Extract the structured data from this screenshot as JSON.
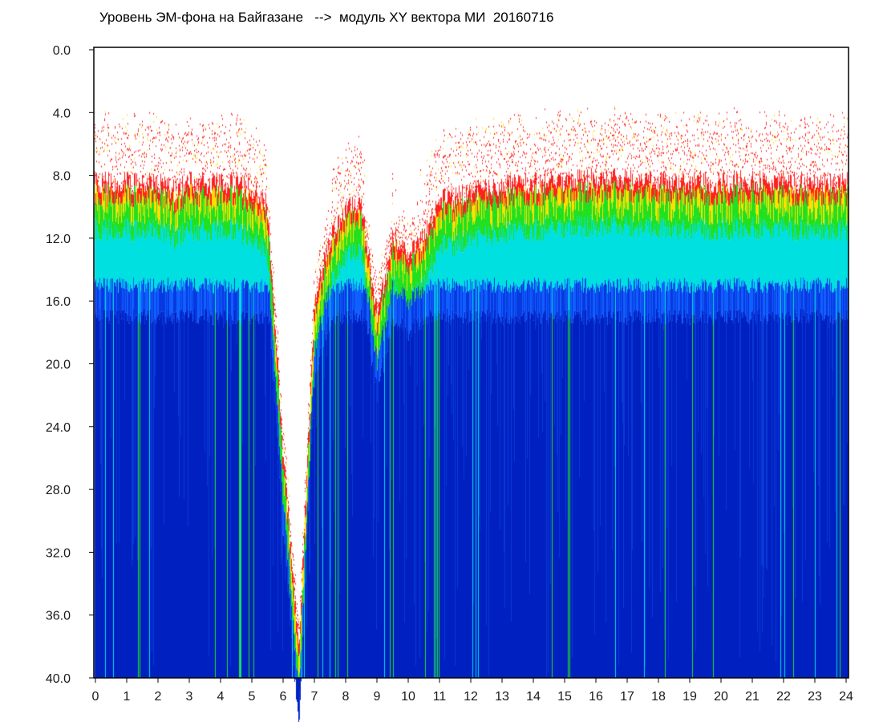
{
  "chart_data": {
    "type": "heatmap",
    "title": "Уровень ЭМ-фона на Байгазане   -->  модуль XY вектора МИ  20160716",
    "xlabel": "",
    "ylabel": "",
    "xlim": [
      0,
      24
    ],
    "ylim": [
      0,
      40
    ],
    "y_inverted": true,
    "x_ticks": [
      "0",
      "1",
      "2",
      "3",
      "4",
      "5",
      "6",
      "7",
      "8",
      "9",
      "10",
      "11",
      "12",
      "13",
      "14",
      "15",
      "16",
      "17",
      "18",
      "19",
      "20",
      "21",
      "22",
      "23",
      "24"
    ],
    "y_ticks": [
      "0.0",
      "4.0",
      "8.0",
      "12.0",
      "16.0",
      "20.0",
      "24.0",
      "28.0",
      "32.0",
      "36.0",
      "40.0"
    ],
    "colormap": [
      "#ff2020",
      "#ffe000",
      "#20e020",
      "#00e0e0",
      "#1060ff",
      "#0020c0"
    ],
    "signal_top_envelope": {
      "hours": [
        0,
        0.5,
        1,
        1.5,
        2,
        2.5,
        3,
        3.5,
        4,
        4.5,
        5,
        5.5,
        6,
        6.5,
        7,
        7.5,
        8,
        8.5,
        9,
        9.5,
        10,
        10.5,
        11,
        11.5,
        12,
        13,
        14,
        15,
        16,
        17,
        18,
        19,
        20,
        21,
        22,
        23,
        24
      ],
      "top_level": [
        8.5,
        8.5,
        8.5,
        8.5,
        8.5,
        9,
        8.5,
        8.5,
        8.5,
        8.5,
        9,
        10,
        26,
        38,
        16,
        12,
        10,
        10,
        17,
        12,
        13,
        12,
        9.5,
        9.5,
        9,
        8.7,
        8.5,
        8.3,
        8.3,
        8.2,
        8.3,
        8.4,
        8.4,
        8.4,
        8.4,
        8.5,
        8.5
      ]
    },
    "blue_band_start_level": 15
  }
}
